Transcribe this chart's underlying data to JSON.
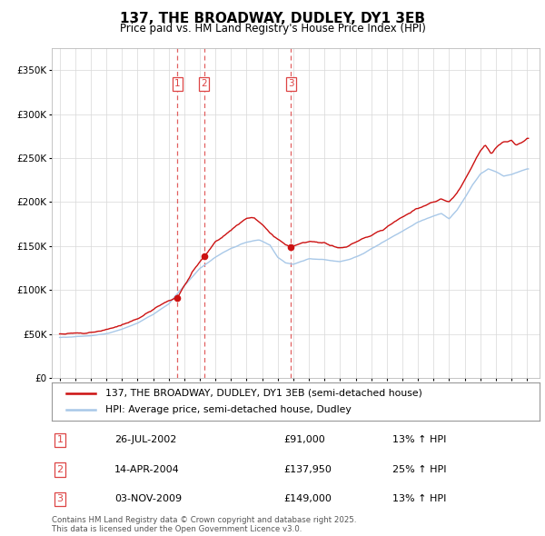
{
  "title": "137, THE BROADWAY, DUDLEY, DY1 3EB",
  "subtitle": "Price paid vs. HM Land Registry's House Price Index (HPI)",
  "legend_line1": "137, THE BROADWAY, DUDLEY, DY1 3EB (semi-detached house)",
  "legend_line2": "HPI: Average price, semi-detached house, Dudley",
  "footer1": "Contains HM Land Registry data © Crown copyright and database right 2025.",
  "footer2": "This data is licensed under the Open Government Licence v3.0.",
  "sales": [
    {
      "num": 1,
      "date_str": "26-JUL-2002",
      "date_x": 2002.57,
      "price": 91000,
      "label": "£91,000",
      "hpi_pct": "13% ↑ HPI"
    },
    {
      "num": 2,
      "date_str": "14-APR-2004",
      "date_x": 2004.28,
      "price": 137950,
      "label": "£137,950",
      "hpi_pct": "25% ↑ HPI"
    },
    {
      "num": 3,
      "date_str": "03-NOV-2009",
      "date_x": 2009.84,
      "price": 149000,
      "label": "£149,000",
      "hpi_pct": "13% ↑ HPI"
    }
  ],
  "hpi_color": "#a8c8e8",
  "price_color": "#cc1111",
  "dashed_line_color": "#dd4444",
  "grid_color": "#d8d8d8",
  "ylim": [
    0,
    375000
  ],
  "yticks": [
    0,
    50000,
    100000,
    150000,
    200000,
    250000,
    300000,
    350000
  ],
  "xlim": [
    1994.5,
    2025.8
  ],
  "hpi_anchors_x": [
    1995.0,
    1996.0,
    1997.0,
    1998.0,
    1999.0,
    2000.0,
    2001.0,
    2002.0,
    2003.0,
    2004.0,
    2005.0,
    2006.0,
    2007.0,
    2007.8,
    2008.5,
    2009.0,
    2009.5,
    2010.0,
    2010.5,
    2011.0,
    2012.0,
    2013.0,
    2013.5,
    2014.0,
    2014.5,
    2015.0,
    2016.0,
    2017.0,
    2018.0,
    2019.0,
    2019.5,
    2020.0,
    2020.5,
    2021.0,
    2021.5,
    2022.0,
    2022.5,
    2023.0,
    2023.5,
    2024.0,
    2024.5,
    2025.0
  ],
  "hpi_anchors_y": [
    46000,
    47000,
    48000,
    50000,
    55000,
    62000,
    72000,
    84000,
    105000,
    125000,
    138000,
    148000,
    155000,
    158000,
    152000,
    138000,
    132000,
    130000,
    133000,
    136000,
    135000,
    133000,
    135000,
    138000,
    142000,
    148000,
    158000,
    168000,
    178000,
    185000,
    188000,
    182000,
    192000,
    205000,
    220000,
    232000,
    238000,
    235000,
    230000,
    232000,
    235000,
    238000
  ],
  "price_anchors_x": [
    1995.0,
    1996.0,
    1997.0,
    1998.0,
    1999.0,
    2000.0,
    2001.0,
    2002.0,
    2002.57,
    2003.0,
    2003.5,
    2004.0,
    2004.28,
    2005.0,
    2006.0,
    2006.5,
    2007.0,
    2007.5,
    2008.0,
    2008.5,
    2009.0,
    2009.5,
    2009.84,
    2010.0,
    2010.5,
    2011.0,
    2012.0,
    2013.0,
    2013.5,
    2014.0,
    2015.0,
    2016.0,
    2017.0,
    2017.5,
    2018.0,
    2019.0,
    2019.5,
    2020.0,
    2020.5,
    2021.0,
    2021.5,
    2022.0,
    2022.3,
    2022.7,
    2023.0,
    2023.5,
    2024.0,
    2024.3,
    2024.7,
    2025.0
  ],
  "price_anchors_y": [
    50000,
    51000,
    52000,
    55000,
    60000,
    67000,
    78000,
    88000,
    91000,
    105000,
    120000,
    132000,
    137950,
    155000,
    168000,
    175000,
    182000,
    182000,
    175000,
    165000,
    158000,
    152000,
    149000,
    150000,
    153000,
    155000,
    153000,
    148000,
    150000,
    155000,
    162000,
    172000,
    183000,
    188000,
    193000,
    200000,
    203000,
    200000,
    210000,
    225000,
    242000,
    258000,
    265000,
    255000,
    262000,
    268000,
    270000,
    265000,
    268000,
    272000
  ]
}
